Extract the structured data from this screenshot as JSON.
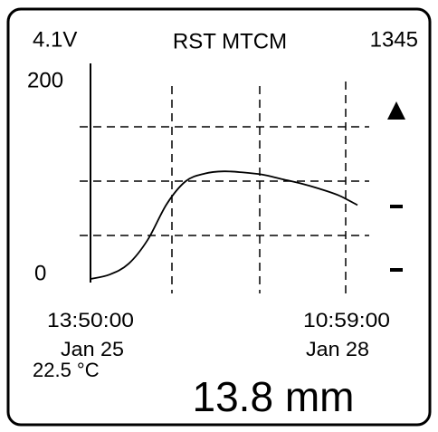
{
  "header": {
    "voltage": "4.1V",
    "title": "RST MTCM",
    "counter": "1345"
  },
  "chart_data": {
    "type": "line",
    "ylim": [
      0,
      200
    ],
    "yticks": [
      0,
      200
    ],
    "ygrid": [
      50,
      100,
      150
    ],
    "x_labels": [
      {
        "time": "13:50:00",
        "date": "Jan 25"
      },
      {
        "time": "10:59:00",
        "date": "Jan 28"
      }
    ],
    "series": [
      {
        "color": "#000000",
        "values": [
          10,
          14,
          24,
          46,
          79,
          100,
          107,
          109,
          108,
          106,
          102,
          98,
          93,
          87,
          78
        ]
      }
    ]
  },
  "footer": {
    "temperature": "22.5 °C",
    "reading": "13.8 mm"
  }
}
